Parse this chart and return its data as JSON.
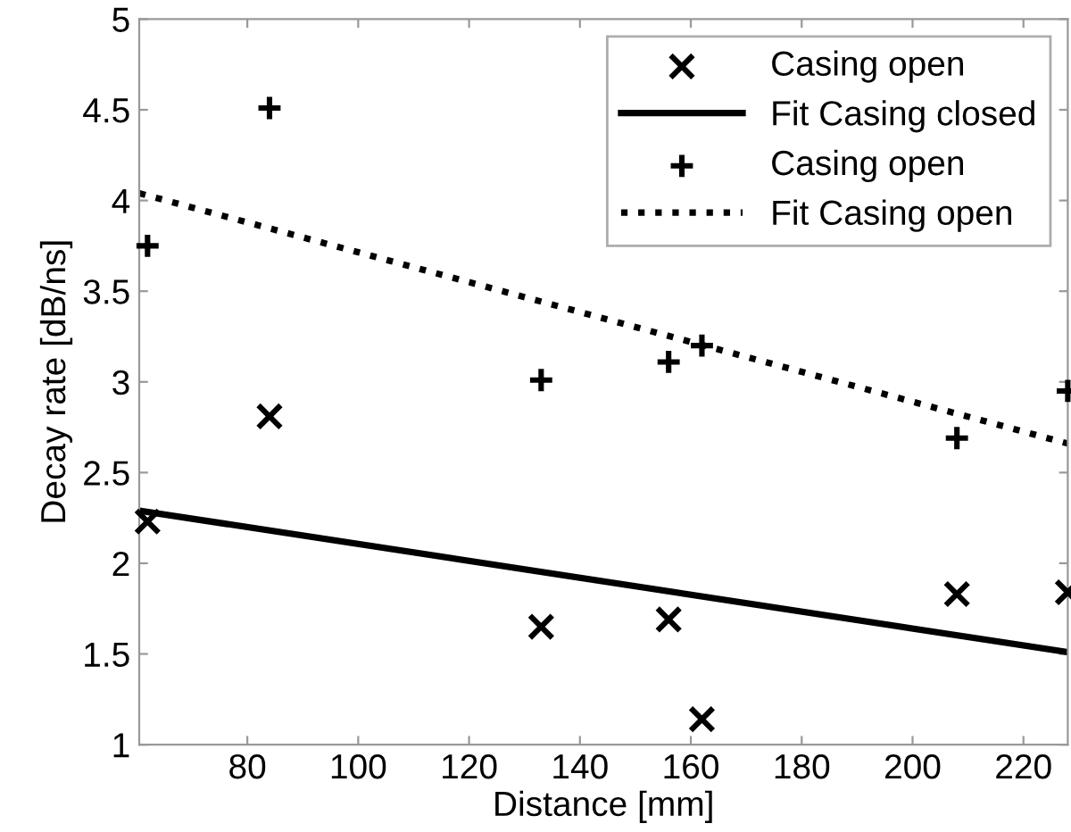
{
  "chart_data": {
    "type": "scatter",
    "xlabel": "Distance [mm]",
    "ylabel": "Decay rate [dB/ns]",
    "xlim": [
      60.5,
      228
    ],
    "xticks": [
      80,
      100,
      120,
      140,
      160,
      180,
      200,
      220
    ],
    "ylim": [
      1,
      5
    ],
    "yticks": [
      1,
      1.5,
      2,
      2.5,
      3,
      3.5,
      4,
      4.5,
      5
    ],
    "grid": false,
    "legend": "top right",
    "series": [
      {
        "name": "Casing open",
        "marker": "x",
        "color": "#000000",
        "x": [
          62,
          84,
          133,
          156,
          162,
          208,
          228
        ],
        "values": [
          2.23,
          2.81,
          1.65,
          1.69,
          1.14,
          1.83,
          1.84
        ]
      },
      {
        "name": "Fit Casing closed",
        "type": "line",
        "line_style": "solid",
        "color": "#000000",
        "x": [
          60.5,
          228
        ],
        "values": [
          2.29,
          1.51
        ]
      },
      {
        "name": "Casing open",
        "marker": "cross",
        "color": "#000000",
        "x": [
          62,
          84,
          133,
          156,
          162,
          208,
          228
        ],
        "values": [
          3.75,
          4.51,
          3.01,
          3.11,
          3.2,
          2.69,
          2.95
        ]
      },
      {
        "name": "Fit Casing open",
        "type": "line",
        "line_style": "dotted",
        "color": "#000000",
        "x": [
          60.5,
          228
        ],
        "values": [
          4.04,
          2.66
        ]
      }
    ]
  }
}
